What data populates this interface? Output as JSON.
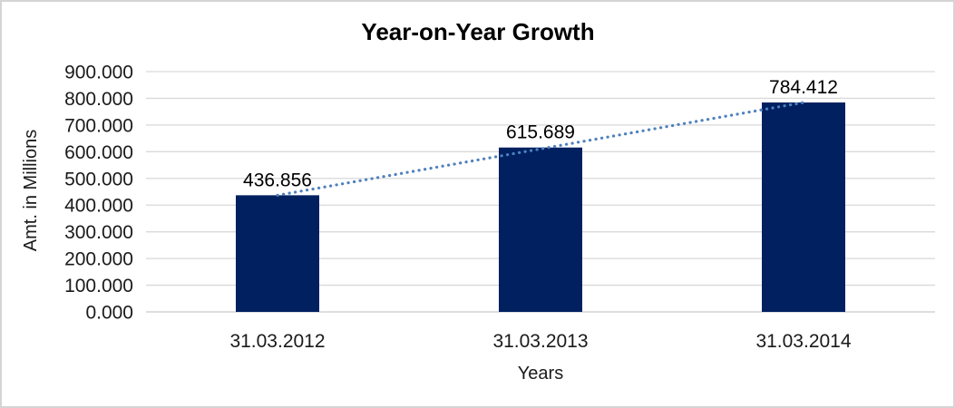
{
  "frame": {
    "background": "#ffffff",
    "border_color": "#d5d5d5"
  },
  "chart_data": {
    "type": "bar",
    "title": "Year-on-Year Growth",
    "xlabel": "Years",
    "ylabel": "Amt. in Millions",
    "categories": [
      "31.03.2012",
      "31.03.2013",
      "31.03.2014"
    ],
    "values": [
      436.856,
      615.689,
      784.412
    ],
    "value_labels": [
      "436.856",
      "615.689",
      "784.412"
    ],
    "y_ticks": [
      "0.000",
      "100.000",
      "200.000",
      "300.000",
      "400.000",
      "500.000",
      "600.000",
      "700.000",
      "800.000",
      "900.000"
    ],
    "ylim": [
      0,
      900
    ],
    "y_tick_step": 100,
    "grid": true,
    "legend_position": "none",
    "bar_color": "#002060",
    "gridline_color": "#d9d9d9",
    "axis_line_color": "#c9c9c9",
    "trendline": {
      "style": "dotted",
      "color": "#4f81bd",
      "from_category_index": 0,
      "to_category_index": 2
    }
  }
}
